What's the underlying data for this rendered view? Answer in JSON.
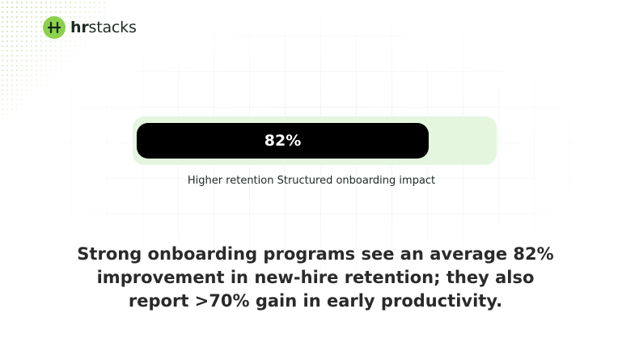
{
  "brand": {
    "prefix": "hr",
    "suffix": "stacks",
    "accent_color": "#8bd14b",
    "icon": "hrstacks-logo-icon"
  },
  "stat": {
    "value_label": "82%",
    "fraction": 0.82,
    "bar_color": "#000000",
    "track_color": "#e5f6df",
    "caption": "Higher retention Structured onboarding impact"
  },
  "headline": {
    "line1": "Strong onboarding programs see an average 82%",
    "line2": "improvement in new-hire retention; they also",
    "line3": "report >70% gain in early productivity."
  }
}
